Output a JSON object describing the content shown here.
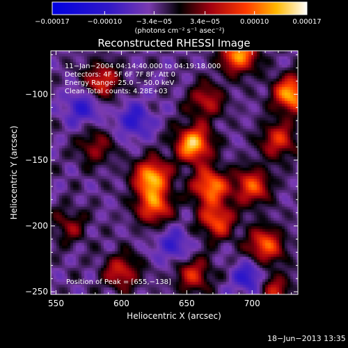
{
  "chart_data": {
    "type": "heatmap",
    "title": "Reconstructed RHESSI Image",
    "xlabel": "Heliocentric X (arcsec)",
    "ylabel": "Heliocentric Y (arcsec)",
    "xlim": [
      546,
      735
    ],
    "ylim": [
      -252,
      -67
    ],
    "x_ticks": [
      550,
      600,
      650,
      700
    ],
    "x_tick_labels": [
      "550",
      "600",
      "650",
      "700"
    ],
    "y_ticks": [
      -100,
      -150,
      -200,
      -250
    ],
    "y_tick_labels": [
      "−100",
      "−150",
      "−200",
      "−250"
    ],
    "grid": false,
    "colorbar": {
      "range": [
        -0.00017,
        0.00017
      ],
      "ticks": [
        -0.00017,
        -0.0001,
        -3.4e-05,
        3.4e-05,
        0.0001,
        0.00017
      ],
      "tick_labels": [
        "−0.00017",
        "−0.00010",
        "−3.4e−05",
        "3.4e−05",
        "0.00010",
        "0.00017"
      ],
      "unit_label": "(photons cm⁻² s⁻¹ asec⁻²)",
      "placement": "top"
    },
    "annotations": [
      "11−Jan−2004 04:14:40.000 to 04:19:18.000",
      "Detectors: 4F 5F 6F 7F 8F, Att 0",
      "Energy Range: 25.0 − 50.0 keV",
      "Clean    Total counts: 4.28E+03"
    ],
    "peak_label": "Position of Peak = [655,−138]",
    "peak_position": [
      655,
      -138
    ],
    "sources": [
      {
        "x": 655,
        "y": -138,
        "amp": 1.0
      },
      {
        "x": 623,
        "y": -163,
        "amp": 0.95
      },
      {
        "x": 668,
        "y": -170,
        "amp": 0.85
      },
      {
        "x": 625,
        "y": -185,
        "amp": 0.75
      },
      {
        "x": 673,
        "y": -196,
        "amp": 0.7
      },
      {
        "x": 700,
        "y": -170,
        "amp": 0.7
      },
      {
        "x": 730,
        "y": -100,
        "amp": 0.95
      },
      {
        "x": 690,
        "y": -70,
        "amp": 0.9
      },
      {
        "x": 585,
        "y": -90,
        "amp": 0.6
      },
      {
        "x": 600,
        "y": -235,
        "amp": 0.55
      },
      {
        "x": 655,
        "y": -237,
        "amp": 0.55
      },
      {
        "x": 710,
        "y": -215,
        "amp": 0.75
      },
      {
        "x": 720,
        "y": -135,
        "amp": 0.6
      },
      {
        "x": 715,
        "y": -248,
        "amp": 0.55
      },
      {
        "x": 665,
        "y": -105,
        "amp": 0.5
      },
      {
        "x": 560,
        "y": -200,
        "amp": 0.35
      },
      {
        "x": 580,
        "y": -140,
        "amp": 0.4
      },
      {
        "x": 610,
        "y": -120,
        "amp": -0.4
      },
      {
        "x": 700,
        "y": -240,
        "amp": -0.5
      },
      {
        "x": 640,
        "y": -215,
        "amp": -0.35
      },
      {
        "x": 570,
        "y": -110,
        "amp": -0.4
      }
    ]
  },
  "footer": {
    "date": "18−Jun−2013 13:35"
  }
}
